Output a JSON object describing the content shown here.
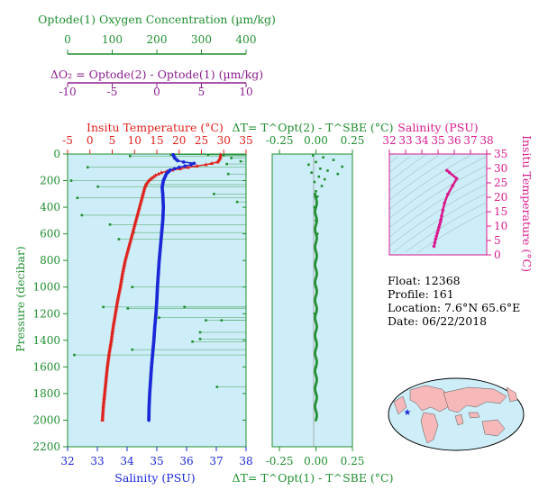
{
  "colors": {
    "red": "#e0201b",
    "blue": "#1a28d8",
    "green": "#1f8f2f",
    "purple": "#8b1f8f",
    "magenta": "#d91a8f",
    "panel_bg": "#cdeef8",
    "land": "#f6b8b8"
  },
  "oxygen_axis": {
    "title": "Optode(1) Oxygen Concentration (µm/kg)",
    "ticks": [
      "0",
      "100",
      "200",
      "300",
      "400"
    ]
  },
  "do2_axis": {
    "title": "ΔO₂ = Optode(2) - Optode(1)   (µm/kg)",
    "ticks": [
      "-10",
      "-5",
      "0",
      "5",
      "10"
    ]
  },
  "temp_axis": {
    "title": "Insitu Temperature (°C)",
    "ticks": [
      "-5",
      "0",
      "5",
      "10",
      "15",
      "20",
      "25",
      "30",
      "35"
    ]
  },
  "pressure_axis": {
    "title": "Pressure (decibar)",
    "ticks": [
      "0",
      "200",
      "400",
      "600",
      "800",
      "1000",
      "1200",
      "1400",
      "1600",
      "1800",
      "2000",
      "2200"
    ]
  },
  "salinity_axis": {
    "title": "Salinity (PSU)",
    "ticks": [
      "32",
      "33",
      "34",
      "35",
      "36",
      "37",
      "38"
    ]
  },
  "dt_top_axis": {
    "title": "ΔT= T^Opt(2) - T^SBE (°C)",
    "ticks": [
      "-0.25",
      "0.00",
      "0.25"
    ]
  },
  "dt_bottom_axis": {
    "title": "ΔT= T^Opt(1) - T^SBE (°C)",
    "ticks": [
      "-0.25",
      "0.00",
      "0.25"
    ]
  },
  "ts_salinity_axis": {
    "title": "Salinity (PSU)",
    "ticks": [
      "32",
      "33",
      "34",
      "35",
      "36",
      "37",
      "38"
    ]
  },
  "ts_temp_axis": {
    "title": "Insitu Temperature (°C)",
    "ticks": [
      "0",
      "5",
      "10",
      "15",
      "20",
      "25",
      "30",
      "35"
    ]
  },
  "info": {
    "float": "Float:  12368",
    "profile": "Profile:  161",
    "location": "Location:  7.6°N  65.6°E",
    "date": "Date:  06/22/2018"
  },
  "chart_data": [
    {
      "type": "line",
      "name": "Insitu Temperature profile",
      "pressure": [
        5,
        30,
        60,
        80,
        100,
        120,
        140,
        160,
        180,
        200,
        220,
        250,
        300,
        400,
        500,
        600,
        700,
        800,
        900,
        1000,
        1100,
        1200,
        1300,
        1400,
        1500,
        1600,
        1700,
        1800,
        1900,
        2000
      ],
      "temperature": [
        29.3,
        29.2,
        28.6,
        26.0,
        22.0,
        18.5,
        16.0,
        14.7,
        13.9,
        13.2,
        12.7,
        12.3,
        11.9,
        11.1,
        10.3,
        9.5,
        8.7,
        7.9,
        7.3,
        6.8,
        6.2,
        5.7,
        5.2,
        4.8,
        4.3,
        3.9,
        3.6,
        3.3,
        3.0,
        2.8
      ],
      "xlim": [
        -5,
        35
      ],
      "ylim": [
        2200,
        0
      ]
    },
    {
      "type": "line",
      "name": "Salinity profile",
      "pressure": [
        5,
        30,
        50,
        60,
        70,
        80,
        100,
        120,
        150,
        200,
        250,
        300,
        400,
        500,
        600,
        700,
        800,
        900,
        1000,
        1100,
        1200,
        1300,
        1400,
        1500,
        1600,
        1700,
        1800,
        1900,
        2000
      ],
      "salinity": [
        35.55,
        35.6,
        35.7,
        35.9,
        36.25,
        36.15,
        35.75,
        35.45,
        35.32,
        35.22,
        35.18,
        35.2,
        35.22,
        35.2,
        35.16,
        35.12,
        35.08,
        35.05,
        35.02,
        35.0,
        34.97,
        34.93,
        34.9,
        34.86,
        34.82,
        34.79,
        34.76,
        34.74,
        34.73
      ],
      "xlim": [
        32,
        38
      ],
      "ylim": [
        2200,
        0
      ]
    },
    {
      "type": "scatter",
      "name": "Oxygen concentration",
      "points": [
        [
          232,
          5
        ],
        [
          315,
          6
        ],
        [
          350,
          10
        ],
        [
          140,
          15
        ],
        [
          367,
          30
        ],
        [
          388,
          55
        ],
        [
          357,
          75
        ],
        [
          45,
          100
        ],
        [
          360,
          150
        ],
        [
          8,
          200
        ],
        [
          175,
          230
        ],
        [
          68,
          245
        ],
        [
          328,
          300
        ],
        [
          22,
          330
        ],
        [
          380,
          360
        ],
        [
          32,
          460
        ],
        [
          95,
          530
        ],
        [
          148,
          590
        ],
        [
          115,
          640
        ],
        [
          145,
          1000
        ],
        [
          80,
          1150
        ],
        [
          135,
          1160
        ],
        [
          262,
          1150
        ],
        [
          310,
          1250
        ],
        [
          205,
          1230
        ],
        [
          345,
          1250
        ],
        [
          297,
          1340
        ],
        [
          297,
          1390
        ],
        [
          280,
          1410
        ],
        [
          145,
          1470
        ],
        [
          15,
          1510
        ],
        [
          335,
          1750
        ]
      ],
      "xlim": [
        0,
        400
      ],
      "ylim": [
        2200,
        0
      ]
    },
    {
      "type": "scatter",
      "name": "Temperature difference",
      "points": [
        [
          -0.02,
          10
        ],
        [
          0.05,
          25
        ],
        [
          0.12,
          45
        ],
        [
          0.0,
          60
        ],
        [
          -0.05,
          80
        ],
        [
          0.18,
          95
        ],
        [
          0.03,
          110
        ],
        [
          0.08,
          125
        ],
        [
          -0.03,
          140
        ],
        [
          0.15,
          150
        ],
        [
          0.02,
          170
        ],
        [
          0.06,
          190
        ],
        [
          -0.01,
          210
        ],
        [
          0.04,
          240
        ],
        [
          0.0,
          280
        ],
        [
          0.01,
          320
        ],
        [
          -0.01,
          400
        ],
        [
          0.0,
          500
        ],
        [
          0.01,
          600
        ],
        [
          0.0,
          800
        ],
        [
          0.0,
          1000
        ],
        [
          -0.01,
          1200
        ],
        [
          0.0,
          1400
        ],
        [
          0.0,
          1600
        ],
        [
          0.0,
          1800
        ],
        [
          0.0,
          2000
        ]
      ],
      "xlim": [
        -0.3,
        0.25
      ],
      "ylim": [
        2200,
        0
      ]
    },
    {
      "type": "line",
      "name": "T-S diagram",
      "salinity": [
        35.55,
        35.7,
        36.15,
        35.9,
        35.6,
        35.4,
        35.3,
        35.22,
        35.18,
        35.15,
        35.1,
        35.05,
        35.0,
        34.95,
        34.9,
        34.85,
        34.8,
        34.75
      ],
      "temperature": [
        29.3,
        28.6,
        26.5,
        24.0,
        21.0,
        18.0,
        15.5,
        13.5,
        12.3,
        11.5,
        10.5,
        9.5,
        8.5,
        7.5,
        6.5,
        5.5,
        4.2,
        3.0
      ],
      "xlim": [
        32,
        38
      ],
      "ylim": [
        0,
        35
      ]
    }
  ]
}
